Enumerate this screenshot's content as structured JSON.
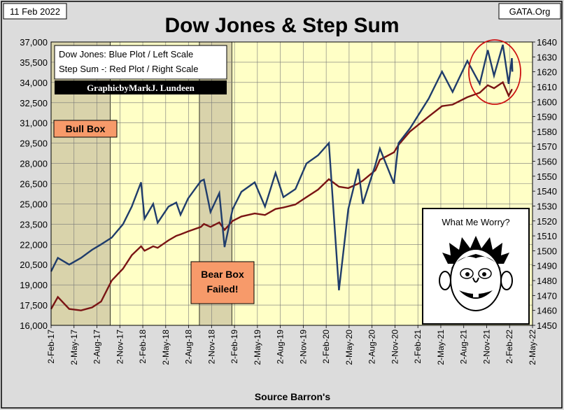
{
  "header": {
    "date": "11 Feb 2022",
    "title": "Dow Jones & Step Sum",
    "source_site": "GATA.Org"
  },
  "legend": {
    "line1": "Dow Jones: Blue Plot / Left Scale",
    "line2": "Step Sum -: Red Plot / Right Scale",
    "credit": "GraphicbyMarkJ. Lundeen"
  },
  "annotations": {
    "bull_box": "Bull Box",
    "bear_box_line1": "Bear Box",
    "bear_box_line2": "Failed!",
    "worry": "What Me Worry?",
    "worry_image": "cartoon-face-icon"
  },
  "footer": {
    "source": "Source Barron's"
  },
  "colors": {
    "plot_bg": "#ffffc6",
    "dow": "#1f3c6b",
    "step": "#7a1414",
    "bull_box_fill": "#f79a6a",
    "shade": "#bfb59a",
    "circle": "#cc1111"
  },
  "chart_data": {
    "type": "line",
    "title": "Dow Jones & Step Sum",
    "xlabel": "Source Barron's",
    "x_ticks": [
      "2-Feb-17",
      "2-May-17",
      "2-Aug-17",
      "2-Nov-17",
      "2-Feb-18",
      "2-May-18",
      "2-Aug-18",
      "2-Nov-18",
      "2-Feb-19",
      "2-May-19",
      "2-Aug-19",
      "2-Nov-19",
      "2-Feb-20",
      "2-May-20",
      "2-Aug-20",
      "2-Nov-20",
      "2-Feb-21",
      "2-May-21",
      "2-Aug-21",
      "2-Nov-21",
      "2-Feb-22",
      "2-May-22"
    ],
    "left_axis": {
      "min": 16000,
      "max": 37000,
      "ticks": [
        "16,000",
        "17,500",
        "19,000",
        "20,500",
        "22,000",
        "23,500",
        "25,000",
        "26,500",
        "28,000",
        "29,500",
        "31,000",
        "32,500",
        "34,000",
        "35,500",
        "37,000"
      ]
    },
    "right_axis": {
      "min": 1450,
      "max": 1640,
      "ticks": [
        "1450",
        "1460",
        "1470",
        "1480",
        "1490",
        "1500",
        "1510",
        "1520",
        "1530",
        "1540",
        "1550",
        "1560",
        "1570",
        "1580",
        "1590",
        "1600",
        "1610",
        "1620",
        "1630",
        "1640"
      ]
    },
    "grid": true,
    "legend_position": "top-left",
    "shaded_periods": [
      {
        "label": "Bull Box",
        "start": "2017-02-02",
        "end": "2017-09-25"
      },
      {
        "label": "Bear Box Failed!",
        "start": "2018-09-15",
        "end": "2019-01-22"
      }
    ],
    "series": [
      {
        "name": "Dow Jones",
        "axis": "left",
        "points": [
          [
            "2017-02-02",
            20000
          ],
          [
            "2017-03-01",
            21000
          ],
          [
            "2017-04-15",
            20500
          ],
          [
            "2017-06-01",
            21000
          ],
          [
            "2017-07-15",
            21600
          ],
          [
            "2017-08-20",
            22000
          ],
          [
            "2017-10-01",
            22500
          ],
          [
            "2017-11-15",
            23500
          ],
          [
            "2017-12-20",
            24800
          ],
          [
            "2018-01-26",
            26600
          ],
          [
            "2018-02-09",
            23900
          ],
          [
            "2018-03-15",
            25000
          ],
          [
            "2018-04-02",
            23600
          ],
          [
            "2018-05-15",
            24800
          ],
          [
            "2018-06-15",
            25100
          ],
          [
            "2018-07-02",
            24200
          ],
          [
            "2018-08-01",
            25400
          ],
          [
            "2018-09-21",
            26700
          ],
          [
            "2018-10-03",
            26800
          ],
          [
            "2018-10-29",
            24400
          ],
          [
            "2018-12-03",
            25800
          ],
          [
            "2018-12-24",
            21800
          ],
          [
            "2019-01-25",
            24600
          ],
          [
            "2019-03-01",
            25900
          ],
          [
            "2019-04-23",
            26600
          ],
          [
            "2019-06-03",
            24800
          ],
          [
            "2019-07-15",
            27300
          ],
          [
            "2019-08-15",
            25500
          ],
          [
            "2019-10-02",
            26100
          ],
          [
            "2019-11-15",
            28000
          ],
          [
            "2019-12-31",
            28600
          ],
          [
            "2020-02-12",
            29500
          ],
          [
            "2020-03-23",
            18600
          ],
          [
            "2020-04-29",
            24600
          ],
          [
            "2020-06-08",
            27600
          ],
          [
            "2020-06-26",
            25000
          ],
          [
            "2020-08-15",
            27900
          ],
          [
            "2020-09-02",
            29100
          ],
          [
            "2020-10-28",
            26500
          ],
          [
            "2020-11-15",
            29500
          ],
          [
            "2020-12-31",
            30600
          ],
          [
            "2021-03-15",
            32800
          ],
          [
            "2021-05-07",
            34800
          ],
          [
            "2021-06-18",
            33300
          ],
          [
            "2021-08-16",
            35600
          ],
          [
            "2021-10-04",
            33900
          ],
          [
            "2021-11-05",
            36400
          ],
          [
            "2021-11-30",
            34500
          ],
          [
            "2022-01-04",
            36800
          ],
          [
            "2022-01-27",
            33900
          ],
          [
            "2022-02-09",
            35800
          ],
          [
            "2022-02-11",
            34800
          ]
        ]
      },
      {
        "name": "Step Sum",
        "axis": "right",
        "points": [
          [
            "2017-02-02",
            1461
          ],
          [
            "2017-03-01",
            1469
          ],
          [
            "2017-04-15",
            1461
          ],
          [
            "2017-06-01",
            1460
          ],
          [
            "2017-07-15",
            1462
          ],
          [
            "2017-08-20",
            1466
          ],
          [
            "2017-10-01",
            1480
          ],
          [
            "2017-11-15",
            1488
          ],
          [
            "2017-12-20",
            1497
          ],
          [
            "2018-01-26",
            1503
          ],
          [
            "2018-02-09",
            1500
          ],
          [
            "2018-03-15",
            1503
          ],
          [
            "2018-04-02",
            1502
          ],
          [
            "2018-05-15",
            1507
          ],
          [
            "2018-06-15",
            1510
          ],
          [
            "2018-07-02",
            1511
          ],
          [
            "2018-08-01",
            1513
          ],
          [
            "2018-09-21",
            1516
          ],
          [
            "2018-10-03",
            1518
          ],
          [
            "2018-10-29",
            1516
          ],
          [
            "2018-12-03",
            1519
          ],
          [
            "2018-12-24",
            1514
          ],
          [
            "2019-01-25",
            1520
          ],
          [
            "2019-03-01",
            1523
          ],
          [
            "2019-04-23",
            1525
          ],
          [
            "2019-06-03",
            1524
          ],
          [
            "2019-07-15",
            1528
          ],
          [
            "2019-08-15",
            1529
          ],
          [
            "2019-10-02",
            1531
          ],
          [
            "2019-11-15",
            1536
          ],
          [
            "2019-12-31",
            1541
          ],
          [
            "2020-02-12",
            1548
          ],
          [
            "2020-03-23",
            1543
          ],
          [
            "2020-04-29",
            1542
          ],
          [
            "2020-06-08",
            1545
          ],
          [
            "2020-06-26",
            1547
          ],
          [
            "2020-08-15",
            1554
          ],
          [
            "2020-09-02",
            1561
          ],
          [
            "2020-10-28",
            1566
          ],
          [
            "2020-11-15",
            1571
          ],
          [
            "2020-12-31",
            1580
          ],
          [
            "2021-03-15",
            1590
          ],
          [
            "2021-05-07",
            1597
          ],
          [
            "2021-06-18",
            1598
          ],
          [
            "2021-08-16",
            1603
          ],
          [
            "2021-10-04",
            1606
          ],
          [
            "2021-11-05",
            1611
          ],
          [
            "2021-11-30",
            1609
          ],
          [
            "2022-01-04",
            1613
          ],
          [
            "2022-01-27",
            1604
          ],
          [
            "2022-02-09",
            1608
          ],
          [
            "2022-02-11",
            1608
          ]
        ]
      }
    ]
  }
}
